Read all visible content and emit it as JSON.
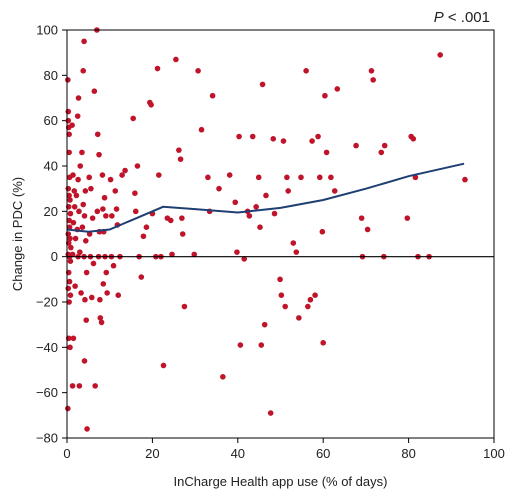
{
  "chart_data": {
    "type": "scatter",
    "title": "",
    "annotation": {
      "p_prefix": "P",
      "p_rest": " < .001"
    },
    "xlabel": "InCharge Health app use (% of days)",
    "ylabel": "Change in PDC (%)",
    "xlim": [
      0,
      100
    ],
    "ylim": [
      -80,
      100
    ],
    "xticks": [
      0,
      20,
      40,
      60,
      80,
      100
    ],
    "yticks": [
      -80,
      -60,
      -40,
      -20,
      0,
      20,
      40,
      60,
      80,
      100
    ],
    "grid": false,
    "colors": {
      "points": "#c0142a",
      "trend": "#1f3f73",
      "zero_line": "#000000",
      "frame": "#000000"
    },
    "points": [
      [
        0.2,
        78
      ],
      [
        0.3,
        64
      ],
      [
        0.3,
        60
      ],
      [
        0.4,
        57
      ],
      [
        0.5,
        54
      ],
      [
        0.5,
        46
      ],
      [
        0.6,
        35
      ],
      [
        0.3,
        30
      ],
      [
        0.5,
        27
      ],
      [
        0.7,
        25
      ],
      [
        0.4,
        22
      ],
      [
        0.8,
        19
      ],
      [
        0.5,
        16
      ],
      [
        0.6,
        13
      ],
      [
        0.3,
        10
      ],
      [
        0.7,
        8
      ],
      [
        0.4,
        6
      ],
      [
        0.9,
        4
      ],
      [
        0.3,
        1
      ],
      [
        0.6,
        0
      ],
      [
        0.8,
        -2
      ],
      [
        0.4,
        -7
      ],
      [
        0.6,
        -11
      ],
      [
        0.3,
        -14
      ],
      [
        0.8,
        -17
      ],
      [
        0.5,
        -20
      ],
      [
        0.4,
        -36
      ],
      [
        0.7,
        -40
      ],
      [
        0.2,
        -67
      ],
      [
        1.2,
        58
      ],
      [
        1.4,
        36
      ],
      [
        1.7,
        29
      ],
      [
        1.8,
        22
      ],
      [
        1.5,
        15
      ],
      [
        2.0,
        8
      ],
      [
        1.3,
        1
      ],
      [
        1.9,
        -13
      ],
      [
        1.5,
        -36
      ],
      [
        1.3,
        -57
      ],
      [
        2.5,
        62
      ],
      [
        2.7,
        70
      ],
      [
        3.1,
        40
      ],
      [
        2.6,
        34
      ],
      [
        2.2,
        27
      ],
      [
        2.8,
        20
      ],
      [
        2.4,
        12
      ],
      [
        3.0,
        2
      ],
      [
        2.6,
        0
      ],
      [
        3.3,
        -16
      ],
      [
        2.9,
        -57
      ],
      [
        3.8,
        82
      ],
      [
        4.0,
        95
      ],
      [
        3.5,
        46
      ],
      [
        4.3,
        29
      ],
      [
        3.8,
        23
      ],
      [
        4.1,
        18
      ],
      [
        3.6,
        13
      ],
      [
        4.4,
        7
      ],
      [
        4.0,
        0
      ],
      [
        4.6,
        -7
      ],
      [
        4.2,
        -19
      ],
      [
        4.5,
        -28
      ],
      [
        4.1,
        -46
      ],
      [
        4.7,
        -76
      ],
      [
        5.2,
        35
      ],
      [
        5.6,
        30
      ],
      [
        6.0,
        17
      ],
      [
        5.3,
        10
      ],
      [
        5.5,
        0
      ],
      [
        6.2,
        -3
      ],
      [
        5.8,
        -18
      ],
      [
        6.4,
        73
      ],
      [
        6.6,
        -57
      ],
      [
        7.0,
        100
      ],
      [
        7.2,
        54
      ],
      [
        7.5,
        45
      ],
      [
        7.1,
        20
      ],
      [
        7.6,
        11
      ],
      [
        7.4,
        0
      ],
      [
        7.7,
        -19
      ],
      [
        7.8,
        -27
      ],
      [
        8.1,
        -29
      ],
      [
        8.3,
        36
      ],
      [
        8.8,
        26
      ],
      [
        8.4,
        21
      ],
      [
        9.1,
        18
      ],
      [
        8.6,
        11
      ],
      [
        8.9,
        0
      ],
      [
        9.2,
        -7
      ],
      [
        8.5,
        -12
      ],
      [
        9.4,
        -16
      ],
      [
        10.2,
        34
      ],
      [
        10.5,
        18
      ],
      [
        10.4,
        0
      ],
      [
        10.9,
        -4
      ],
      [
        11.3,
        29
      ],
      [
        11.6,
        21
      ],
      [
        11.8,
        14
      ],
      [
        12.4,
        0
      ],
      [
        12.0,
        -17
      ],
      [
        12.9,
        36
      ],
      [
        13.6,
        38
      ],
      [
        15.5,
        61
      ],
      [
        15.9,
        28
      ],
      [
        16.5,
        40
      ],
      [
        16.1,
        20
      ],
      [
        16.9,
        0
      ],
      [
        17.4,
        -9
      ],
      [
        17.9,
        9
      ],
      [
        18.6,
        13
      ],
      [
        19.4,
        68
      ],
      [
        19.7,
        67
      ],
      [
        20.0,
        19
      ],
      [
        20.8,
        0
      ],
      [
        21.2,
        83
      ],
      [
        21.5,
        36
      ],
      [
        22.0,
        0
      ],
      [
        22.6,
        -48
      ],
      [
        23.5,
        17
      ],
      [
        24.3,
        16
      ],
      [
        24.6,
        1
      ],
      [
        25.5,
        87
      ],
      [
        26.2,
        47
      ],
      [
        26.6,
        43
      ],
      [
        26.9,
        17
      ],
      [
        27.1,
        10
      ],
      [
        27.5,
        -22
      ],
      [
        29.8,
        1
      ],
      [
        30.7,
        82
      ],
      [
        31.5,
        56
      ],
      [
        33.0,
        35
      ],
      [
        33.4,
        20
      ],
      [
        34.1,
        71
      ],
      [
        35.6,
        30
      ],
      [
        36.5,
        -53
      ],
      [
        38.1,
        36
      ],
      [
        39.4,
        24
      ],
      [
        39.8,
        2
      ],
      [
        40.3,
        53
      ],
      [
        40.6,
        -39
      ],
      [
        41.5,
        -1
      ],
      [
        42.3,
        20
      ],
      [
        42.7,
        18
      ],
      [
        43.5,
        53
      ],
      [
        44.3,
        22
      ],
      [
        44.9,
        35
      ],
      [
        45.5,
        -39
      ],
      [
        45.8,
        76
      ],
      [
        45.2,
        13
      ],
      [
        46.3,
        -30
      ],
      [
        46.6,
        27
      ],
      [
        47.7,
        -69
      ],
      [
        48.3,
        52
      ],
      [
        48.6,
        19
      ],
      [
        49.9,
        -10
      ],
      [
        50.2,
        -17
      ],
      [
        50.7,
        51
      ],
      [
        51.1,
        -22
      ],
      [
        51.5,
        35
      ],
      [
        51.8,
        29
      ],
      [
        53.0,
        6
      ],
      [
        53.7,
        2
      ],
      [
        54.3,
        -27
      ],
      [
        54.8,
        35
      ],
      [
        56.0,
        82
      ],
      [
        56.4,
        -22
      ],
      [
        57.0,
        -19
      ],
      [
        57.4,
        51
      ],
      [
        58.1,
        -17
      ],
      [
        58.8,
        53
      ],
      [
        59.2,
        35
      ],
      [
        59.8,
        11
      ],
      [
        60.0,
        -38
      ],
      [
        60.4,
        71
      ],
      [
        60.8,
        46
      ],
      [
        61.8,
        35
      ],
      [
        62.7,
        29
      ],
      [
        63.3,
        74
      ],
      [
        67.7,
        49
      ],
      [
        69.0,
        17
      ],
      [
        69.2,
        0
      ],
      [
        70.4,
        12
      ],
      [
        71.3,
        82
      ],
      [
        71.7,
        78
      ],
      [
        73.6,
        46
      ],
      [
        74.2,
        0
      ],
      [
        74.4,
        49
      ],
      [
        79.7,
        17
      ],
      [
        80.6,
        53
      ],
      [
        81.1,
        52
      ],
      [
        81.6,
        35
      ],
      [
        82.2,
        0
      ],
      [
        84.8,
        0
      ],
      [
        87.4,
        89
      ],
      [
        93.2,
        34
      ]
    ],
    "trend": [
      [
        0,
        12
      ],
      [
        5,
        11
      ],
      [
        10,
        12
      ],
      [
        15,
        16
      ],
      [
        22.5,
        22
      ],
      [
        30,
        21
      ],
      [
        40,
        19.5
      ],
      [
        50,
        21.5
      ],
      [
        60,
        25
      ],
      [
        70,
        30
      ],
      [
        80,
        35.5
      ],
      [
        93,
        41
      ]
    ]
  }
}
